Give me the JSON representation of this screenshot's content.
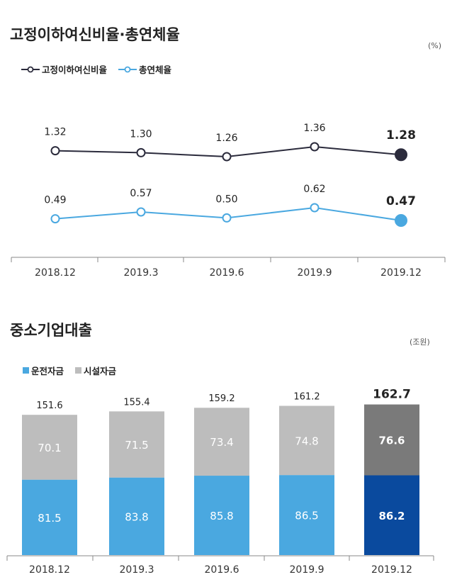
{
  "chart_data": [
    {
      "type": "line",
      "title": "고정이하여신비율·총연체율",
      "unit": "(%)",
      "categories": [
        "2018.12",
        "2019.3",
        "2019.6",
        "2019.9",
        "2019.12"
      ],
      "series": [
        {
          "name": "고정이하여신비율",
          "color": "#2b2b3c",
          "values": [
            1.32,
            1.3,
            1.26,
            1.36,
            1.28
          ],
          "labels": [
            "1.32",
            "1.30",
            "1.26",
            "1.36",
            "1.28"
          ]
        },
        {
          "name": "총연체율",
          "color": "#4aa8e0",
          "values": [
            0.49,
            0.57,
            0.5,
            0.62,
            0.47
          ],
          "labels": [
            "0.49",
            "0.57",
            "0.50",
            "0.62",
            "0.47"
          ]
        }
      ]
    },
    {
      "type": "bar",
      "stacked": true,
      "title": "중소기업대출",
      "unit": "(조원)",
      "categories": [
        "2018.12",
        "2019.3",
        "2019.6",
        "2019.9",
        "2019.12"
      ],
      "series": [
        {
          "name": "운전자금",
          "color": "#4aa8e0",
          "highlight_color": "#0a4a9e",
          "values": [
            81.5,
            83.8,
            85.8,
            86.5,
            86.2
          ],
          "labels": [
            "81.5",
            "83.8",
            "85.8",
            "86.5",
            "86.2"
          ]
        },
        {
          "name": "시설자금",
          "color": "#bdbdbd",
          "highlight_color": "#7a7a7a",
          "values": [
            70.1,
            71.5,
            73.4,
            74.8,
            76.6
          ],
          "labels": [
            "70.1",
            "71.5",
            "73.4",
            "74.8",
            "76.6"
          ]
        }
      ],
      "totals": [
        151.6,
        155.4,
        159.2,
        161.2,
        162.7
      ],
      "total_labels": [
        "151.6",
        "155.4",
        "159.2",
        "161.2",
        "162.7"
      ]
    }
  ]
}
